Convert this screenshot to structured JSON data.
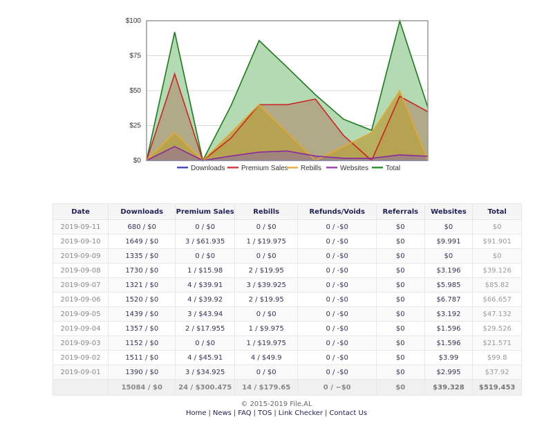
{
  "chart_data": {
    "type": "area",
    "title": "",
    "xlabel": "",
    "ylabel": "",
    "ylim": [
      0,
      100
    ],
    "yticks": [
      "$0",
      "$25",
      "$50",
      "$75",
      "$100"
    ],
    "ytick_values": [
      0,
      25,
      50,
      75,
      100
    ],
    "grid": true,
    "legend_position": "bottom",
    "x": [
      "2019-09-11",
      "2019-09-10",
      "2019-09-09",
      "2019-09-08",
      "2019-09-07",
      "2019-09-06",
      "2019-09-05",
      "2019-09-04",
      "2019-09-03",
      "2019-09-02",
      "2019-09-01"
    ],
    "series": [
      {
        "name": "Total",
        "color": "#1a7a1a",
        "fill": "#b3dab3",
        "values": [
          0,
          91.901,
          0,
          39.126,
          85.82,
          66.657,
          47.132,
          29.526,
          21.571,
          99.8,
          37.92
        ]
      },
      {
        "name": "Premium Sales",
        "color": "#cc2222",
        "fill": "#b09a7a",
        "values": [
          0,
          61.935,
          0,
          15.98,
          39.91,
          39.92,
          43.94,
          17.955,
          0,
          45.91,
          34.925
        ]
      },
      {
        "name": "Rebills",
        "color": "#e8a830",
        "fill": "#b8a040",
        "values": [
          0,
          19.975,
          0,
          19.95,
          39.925,
          19.95,
          0,
          9.975,
          19.975,
          49.9,
          0
        ]
      },
      {
        "name": "Websites",
        "color": "#8a2a9a",
        "fill": "#9a7a8a",
        "values": [
          0,
          9.991,
          0,
          3.196,
          5.985,
          6.787,
          3.192,
          1.596,
          1.596,
          3.99,
          2.995
        ]
      },
      {
        "name": "Downloads",
        "color": "#2a2aaa",
        "fill": "#8888dd",
        "values": [
          0,
          0,
          0,
          0,
          0,
          0,
          0,
          0,
          0,
          0,
          0
        ]
      }
    ],
    "legend": [
      {
        "name": "Downloads",
        "color": "#2a2aaa",
        "fill": "#aaaaee"
      },
      {
        "name": "Premium Sales",
        "color": "#cc2222",
        "fill": "#ee9999"
      },
      {
        "name": "Rebills",
        "color": "#e8a830",
        "fill": "#f0d090"
      },
      {
        "name": "Websites",
        "color": "#8a2a9a",
        "fill": "#dd99ee"
      },
      {
        "name": "Total",
        "color": "#1a7a1a",
        "fill": "#88cc88"
      }
    ]
  },
  "table": {
    "headers": [
      "Date",
      "Downloads",
      "Premium Sales",
      "Rebills",
      "Refunds/Voids",
      "Referrals",
      "Websites",
      "Total"
    ],
    "rows": [
      [
        "2019-09-11",
        "680 / $0",
        "0 / $0",
        "0 / $0",
        "0 / -$0",
        "$0",
        "$0",
        "$0"
      ],
      [
        "2019-09-10",
        "1649 / $0",
        "3 / $61.935",
        "1 / $19.975",
        "0 / -$0",
        "$0",
        "$9.991",
        "$91.901"
      ],
      [
        "2019-09-09",
        "1335 / $0",
        "0 / $0",
        "0 / $0",
        "0 / -$0",
        "$0",
        "$0",
        "$0"
      ],
      [
        "2019-09-08",
        "1730 / $0",
        "1 / $15.98",
        "2 / $19.95",
        "0 / -$0",
        "$0",
        "$3.196",
        "$39.126"
      ],
      [
        "2019-09-07",
        "1321 / $0",
        "4 / $39.91",
        "3 / $39.925",
        "0 / -$0",
        "$0",
        "$5.985",
        "$85.82"
      ],
      [
        "2019-09-06",
        "1520 / $0",
        "4 / $39.92",
        "2 / $19.95",
        "0 / -$0",
        "$0",
        "$6.787",
        "$66.657"
      ],
      [
        "2019-09-05",
        "1439 / $0",
        "3 / $43.94",
        "0 / $0",
        "0 / -$0",
        "$0",
        "$3.192",
        "$47.132"
      ],
      [
        "2019-09-04",
        "1357 / $0",
        "2 / $17.955",
        "1 / $9.975",
        "0 / -$0",
        "$0",
        "$1.596",
        "$29.526"
      ],
      [
        "2019-09-03",
        "1152 / $0",
        "0 / $0",
        "1 / $19.975",
        "0 / -$0",
        "$0",
        "$1.596",
        "$21.571"
      ],
      [
        "2019-09-02",
        "1511 / $0",
        "4 / $45.91",
        "4 / $49.9",
        "0 / -$0",
        "$0",
        "$3.99",
        "$99.8"
      ],
      [
        "2019-09-01",
        "1390 / $0",
        "3 / $34.925",
        "0 / $0",
        "0 / -$0",
        "$0",
        "$2.995",
        "$37.92"
      ]
    ],
    "totals": [
      "",
      "15084 / $0",
      "24 / $300.475",
      "14 / $179.65",
      "0 / −$0",
      "$0",
      "$39.328",
      "$519.453"
    ]
  },
  "footer": {
    "copyright": "© 2015-2019 File.AL",
    "links": [
      "Home",
      "News",
      "FAQ",
      "TOS",
      "Link Checker",
      "Contact Us"
    ],
    "separator": "|"
  }
}
